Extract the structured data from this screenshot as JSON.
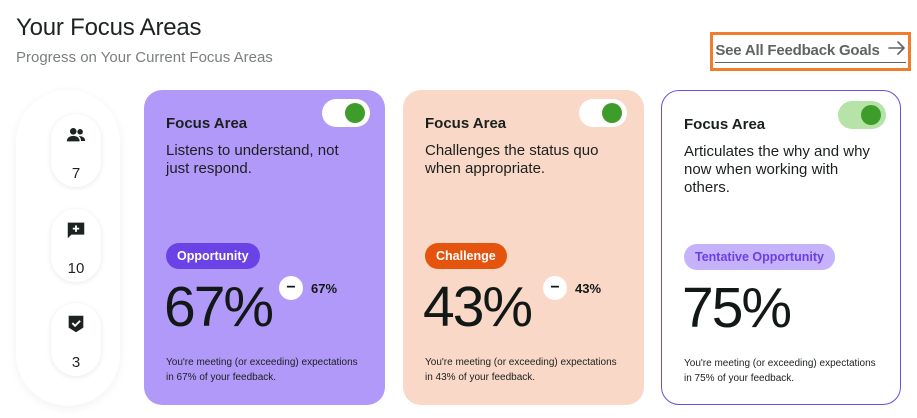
{
  "header": {
    "title": "Your Focus Areas",
    "subtitle": "Progress on Your Current Focus Areas",
    "see_all_label": "See All Feedback Goals"
  },
  "stats": [
    {
      "icon": "people-icon",
      "value": "7"
    },
    {
      "icon": "add-comment-icon",
      "value": "10"
    },
    {
      "icon": "shield-check-icon",
      "value": "3"
    }
  ],
  "cards": [
    {
      "label": "Focus Area",
      "description": "Listens to understand, not just respond.",
      "badge": "Opportunity",
      "percent": "67%",
      "delta_sign": "−",
      "delta_value": "67%",
      "footnote": "You're meeting (or exceeding) expectations in 67% of your feedback.",
      "toggle_on": true,
      "colors": {
        "background": "#b199fa",
        "badge": "#6b42e6"
      }
    },
    {
      "label": "Focus Area",
      "description": "Challenges the status quo when appropriate.",
      "badge": "Challenge",
      "percent": "43%",
      "delta_sign": "−",
      "delta_value": "43%",
      "footnote": "You're meeting (or exceeding) expectations in 43% of your feedback.",
      "toggle_on": true,
      "colors": {
        "background": "#f9d8c8",
        "badge": "#e4540f"
      }
    },
    {
      "label": "Focus Area",
      "description": "Articulates the why and why now when working with others.",
      "badge": "Tentative Opportunity",
      "percent": "75%",
      "footnote": "You're meeting (or exceeding) expectations in 75% of your feedback.",
      "toggle_on": true,
      "colors": {
        "background": "#ffffff",
        "border": "#6a4fe0",
        "badge": "#c6b2fb"
      }
    }
  ],
  "colors": {
    "highlight": "#f07c2e",
    "toggle_knob": "#3e9d2a"
  }
}
